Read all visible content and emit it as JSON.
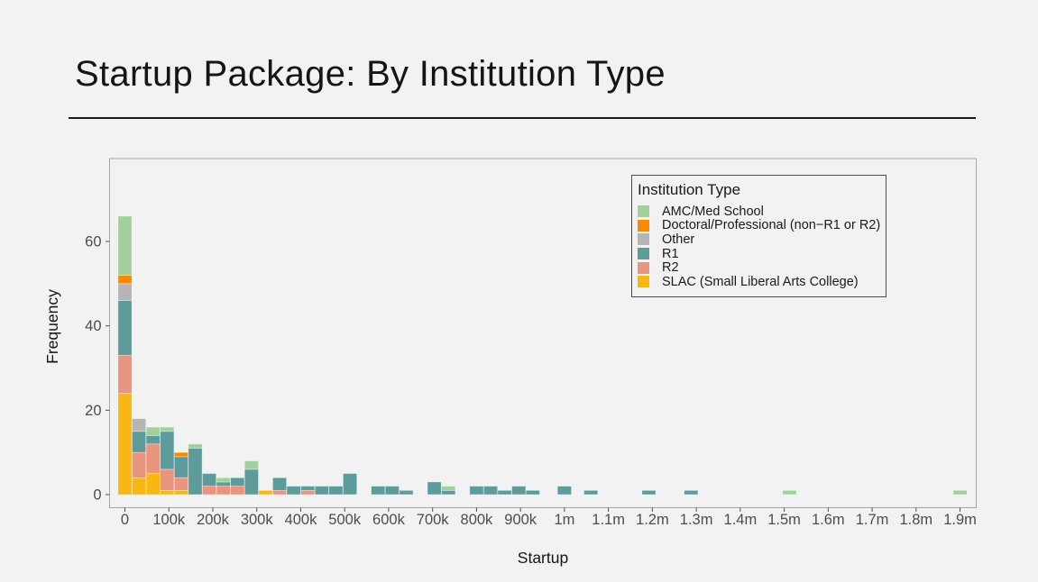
{
  "slide": {
    "title": "Startup Package: By Institution Type"
  },
  "chart_data": {
    "type": "bar",
    "subtype": "stacked-histogram",
    "title": "Startup Package: By Institution Type",
    "xlabel": "Startup",
    "ylabel": "Frequency",
    "x_unit": "dollars",
    "x_tick_positions_k": [
      0,
      100,
      200,
      300,
      400,
      500,
      600,
      700,
      800,
      900,
      1000,
      1100,
      1200,
      1300,
      1400,
      1500,
      1600,
      1700,
      1800,
      1900
    ],
    "x_tick_labels": [
      "0",
      "100k",
      "200k",
      "300k",
      "400k",
      "500k",
      "600k",
      "700k",
      "800k",
      "900k",
      "1m",
      "1.1m",
      "1.2m",
      "1.3m",
      "1.4m",
      "1.5m",
      "1.6m",
      "1.7m",
      "1.8m",
      "1.9m"
    ],
    "y_tick_positions": [
      0,
      20,
      40,
      60
    ],
    "y_tick_labels": [
      "0",
      "20",
      "40",
      "60"
    ],
    "ylim": [
      0,
      79
    ],
    "xlim_k": [
      -35,
      1937
    ],
    "bin_width_k": 31.4,
    "grid": "off",
    "legend_position": "top-right-inside",
    "stack_order_bottom_to_top": [
      "SLAC",
      "R2",
      "R1",
      "Other",
      "Doctoral",
      "AMC"
    ],
    "legend": {
      "title": "Institution Type",
      "entries": [
        {
          "key": "AMC",
          "label": "AMC/Med School",
          "color": "#A2D09C"
        },
        {
          "key": "Doctoral",
          "label": "Doctoral/Professional (non−R1 or R2)",
          "color": "#F78A05"
        },
        {
          "key": "Other",
          "label": "Other",
          "color": "#B5B5B5"
        },
        {
          "key": "R1",
          "label": "R1",
          "color": "#5E9C9C"
        },
        {
          "key": "R2",
          "label": "R2",
          "color": "#E9947E"
        },
        {
          "key": "SLAC",
          "label": "SLAC (Small Liberal Arts College)",
          "color": "#F8B715"
        }
      ]
    },
    "bars": [
      {
        "x_k": 0,
        "segments": {
          "SLAC": 24,
          "R2": 9,
          "R1": 13,
          "Other": 4,
          "Doctoral": 2,
          "AMC": 14
        }
      },
      {
        "x_k": 32,
        "segments": {
          "SLAC": 4,
          "R2": 6,
          "R1": 5,
          "Other": 3
        }
      },
      {
        "x_k": 64,
        "segments": {
          "SLAC": 5,
          "R2": 7,
          "R1": 2,
          "AMC": 2
        }
      },
      {
        "x_k": 96,
        "segments": {
          "SLAC": 1,
          "R2": 5,
          "R1": 9,
          "AMC": 1
        }
      },
      {
        "x_k": 128,
        "segments": {
          "SLAC": 1,
          "R2": 3,
          "R1": 5,
          "Doctoral": 1
        }
      },
      {
        "x_k": 160,
        "segments": {
          "R1": 11,
          "AMC": 1
        }
      },
      {
        "x_k": 192,
        "segments": {
          "R2": 2,
          "R1": 3
        }
      },
      {
        "x_k": 224,
        "segments": {
          "R2": 2,
          "R1": 1,
          "AMC": 1
        }
      },
      {
        "x_k": 256,
        "segments": {
          "R2": 2,
          "R1": 2
        }
      },
      {
        "x_k": 288,
        "segments": {
          "R1": 6,
          "AMC": 2
        }
      },
      {
        "x_k": 320,
        "segments": {
          "SLAC": 1
        }
      },
      {
        "x_k": 352,
        "segments": {
          "R2": 1,
          "R1": 3
        }
      },
      {
        "x_k": 384,
        "segments": {
          "R1": 2
        }
      },
      {
        "x_k": 416,
        "segments": {
          "R2": 1,
          "R1": 1
        }
      },
      {
        "x_k": 448,
        "segments": {
          "R1": 2
        }
      },
      {
        "x_k": 480,
        "segments": {
          "R1": 2
        }
      },
      {
        "x_k": 512,
        "segments": {
          "R1": 5
        }
      },
      {
        "x_k": 576,
        "segments": {
          "R1": 2
        }
      },
      {
        "x_k": 608,
        "segments": {
          "R1": 2
        }
      },
      {
        "x_k": 640,
        "segments": {
          "R1": 1
        }
      },
      {
        "x_k": 704,
        "segments": {
          "R1": 3
        }
      },
      {
        "x_k": 736,
        "segments": {
          "R1": 1,
          "AMC": 1
        }
      },
      {
        "x_k": 800,
        "segments": {
          "R1": 2
        }
      },
      {
        "x_k": 832,
        "segments": {
          "R1": 2
        }
      },
      {
        "x_k": 864,
        "segments": {
          "R1": 1
        }
      },
      {
        "x_k": 896,
        "segments": {
          "R1": 2
        }
      },
      {
        "x_k": 928,
        "segments": {
          "R1": 1
        }
      },
      {
        "x_k": 1000,
        "segments": {
          "R1": 2
        }
      },
      {
        "x_k": 1060,
        "segments": {
          "R1": 1
        }
      },
      {
        "x_k": 1192,
        "segments": {
          "R1": 1
        }
      },
      {
        "x_k": 1288,
        "segments": {
          "R1": 1
        }
      },
      {
        "x_k": 1512,
        "segments": {
          "AMC": 1
        }
      },
      {
        "x_k": 1900,
        "segments": {
          "AMC": 1
        }
      }
    ],
    "colors": {
      "AMC": "#A2D09C",
      "Doctoral": "#F78A05",
      "Other": "#B5B5B5",
      "R1": "#5E9C9C",
      "R2": "#E9947E",
      "SLAC": "#F8B715",
      "panel_border": "#A6A6A6",
      "axis_text": "#4D4D4D",
      "axis_title": "#151515",
      "background": "#F2F2F2"
    }
  }
}
